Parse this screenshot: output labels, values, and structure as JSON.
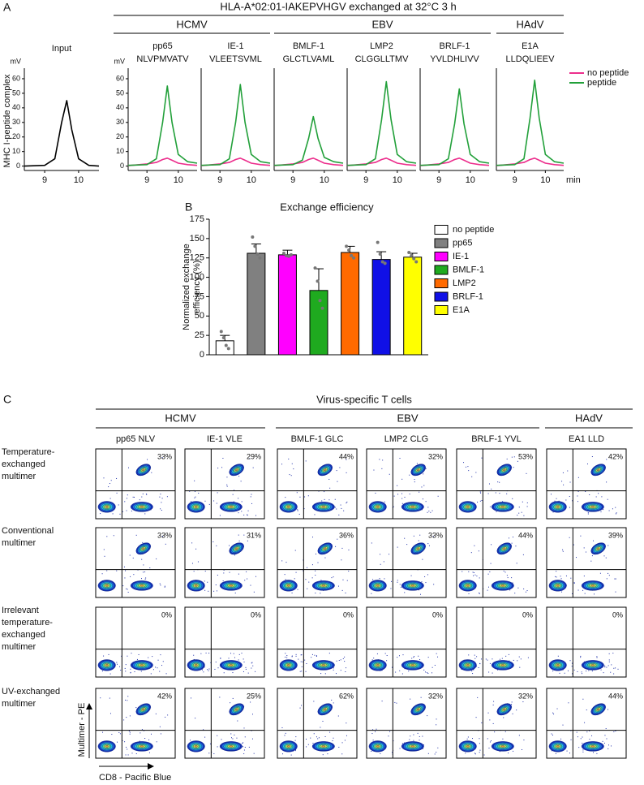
{
  "panel_a": {
    "label": "A",
    "title": "HLA-A*02:01-IAKEPVHGV exchanged at 32°C 3 h",
    "groups": [
      "HCMV",
      "EBV",
      "HAdV"
    ],
    "legend": [
      {
        "name": "no peptide",
        "color": "#ec2e8c"
      },
      {
        "name": "peptide",
        "color": "#22a03a"
      }
    ]
  },
  "panel_b": {
    "label": "B"
  },
  "chart_data": [
    {
      "type": "line",
      "title": "Input",
      "y_label": "MHC I-peptide complex",
      "y_unit": "mV",
      "x": [
        8.4,
        9.0,
        9.3,
        9.5,
        9.65,
        9.8,
        10.0,
        10.3,
        10.6
      ],
      "xlim": [
        8.4,
        10.6
      ],
      "xticks": [
        9,
        10
      ],
      "ylim": [
        -3,
        65
      ],
      "yticks": [
        0,
        10,
        20,
        30,
        40,
        50,
        60
      ],
      "series": [
        {
          "color": "#000000",
          "values": [
            0,
            0.5,
            5,
            30,
            45,
            25,
            5,
            0.5,
            0
          ]
        }
      ]
    },
    {
      "type": "line",
      "title": "pp65",
      "subtitle": "NLVPMVATV",
      "y_unit": "mV",
      "x": [
        8.4,
        9.0,
        9.3,
        9.5,
        9.65,
        9.8,
        10.0,
        10.3,
        10.6
      ],
      "xlim": [
        8.4,
        10.6
      ],
      "xticks": [
        9,
        10
      ],
      "ylim": [
        -3,
        65
      ],
      "yticks": [
        0,
        10,
        20,
        30,
        40,
        50,
        60
      ],
      "series": [
        {
          "color": "#ec2e8c",
          "values": [
            0.3,
            1.5,
            2.5,
            4.5,
            5.5,
            4,
            2,
            1,
            0.5
          ]
        },
        {
          "color": "#22a03a",
          "values": [
            0.5,
            1,
            5,
            30,
            55,
            30,
            8,
            3,
            2
          ]
        }
      ]
    },
    {
      "type": "line",
      "title": "IE-1",
      "subtitle": "VLEETSVML",
      "x": [
        8.4,
        9.0,
        9.3,
        9.5,
        9.65,
        9.8,
        10.0,
        10.3,
        10.6
      ],
      "xlim": [
        8.4,
        10.6
      ],
      "xticks": [
        9,
        10
      ],
      "ylim": [
        -3,
        65
      ],
      "series": [
        {
          "color": "#ec2e8c",
          "values": [
            0.3,
            1.5,
            2.5,
            4.5,
            5.5,
            4,
            2,
            1,
            0.5
          ]
        },
        {
          "color": "#22a03a",
          "values": [
            0.5,
            1,
            5,
            30,
            56,
            30,
            8,
            3,
            2
          ]
        }
      ]
    },
    {
      "type": "line",
      "title": "BMLF-1",
      "subtitle": "GLCTLVAML",
      "x": [
        8.4,
        9.0,
        9.3,
        9.5,
        9.65,
        9.8,
        10.0,
        10.3,
        10.6
      ],
      "xlim": [
        8.4,
        10.6
      ],
      "xticks": [
        9,
        10
      ],
      "ylim": [
        -3,
        65
      ],
      "series": [
        {
          "color": "#ec2e8c",
          "values": [
            0.3,
            1.5,
            2.5,
            4.5,
            5.5,
            4,
            2,
            1,
            0.5
          ]
        },
        {
          "color": "#22a03a",
          "values": [
            0.5,
            1,
            4,
            19,
            34,
            19,
            6,
            3,
            2
          ]
        }
      ]
    },
    {
      "type": "line",
      "title": "LMP2",
      "subtitle": "CLGGLLTMV",
      "x": [
        8.4,
        9.0,
        9.3,
        9.5,
        9.65,
        9.8,
        10.0,
        10.3,
        10.6
      ],
      "xlim": [
        8.4,
        10.6
      ],
      "xticks": [
        9,
        10
      ],
      "ylim": [
        -3,
        65
      ],
      "series": [
        {
          "color": "#ec2e8c",
          "values": [
            0.3,
            1.5,
            2.5,
            4.5,
            5.5,
            4,
            2,
            1,
            0.5
          ]
        },
        {
          "color": "#22a03a",
          "values": [
            0.5,
            1,
            5,
            32,
            58,
            32,
            8,
            3,
            2
          ]
        }
      ]
    },
    {
      "type": "line",
      "title": "BRLF-1",
      "subtitle": "YVLDHLIVV",
      "x": [
        8.4,
        9.0,
        9.3,
        9.5,
        9.65,
        9.8,
        10.0,
        10.3,
        10.6
      ],
      "xlim": [
        8.4,
        10.6
      ],
      "xticks": [
        9,
        10
      ],
      "ylim": [
        -3,
        65
      ],
      "series": [
        {
          "color": "#ec2e8c",
          "values": [
            0.3,
            1.5,
            2.5,
            4.5,
            5.5,
            4,
            2,
            1,
            0.5
          ]
        },
        {
          "color": "#22a03a",
          "values": [
            0.5,
            1,
            5,
            29,
            53,
            29,
            8,
            3,
            2
          ]
        }
      ]
    },
    {
      "type": "line",
      "title": "E1A",
      "subtitle": "LLDQLIEEV",
      "x_unit": "min",
      "x": [
        8.4,
        9.0,
        9.3,
        9.5,
        9.65,
        9.8,
        10.0,
        10.3,
        10.6
      ],
      "xlim": [
        8.4,
        10.6
      ],
      "xticks": [
        9,
        10
      ],
      "ylim": [
        -3,
        65
      ],
      "series": [
        {
          "color": "#ec2e8c",
          "values": [
            0.3,
            1.5,
            2.5,
            4.5,
            5.5,
            4,
            2,
            1,
            0.5
          ]
        },
        {
          "color": "#22a03a",
          "values": [
            0.5,
            1,
            5,
            33,
            59,
            33,
            8,
            3,
            2
          ]
        }
      ]
    },
    {
      "type": "bar",
      "title": "Exchange efficiency",
      "y_label": [
        "Normalized exchange",
        "efficiency (%)"
      ],
      "categories": [
        "no peptide",
        "pp65",
        "IE-1",
        "BMLF-1",
        "LMP2",
        "BRLF-1",
        "E1A"
      ],
      "values": [
        18,
        131,
        129,
        83,
        132,
        123,
        126
      ],
      "errors": [
        7,
        12,
        6,
        28,
        8,
        10,
        5
      ],
      "points": [
        [
          30,
          22,
          12,
          8
        ],
        [
          152,
          140,
          130,
          125
        ],
        [
          131,
          128,
          127,
          129
        ],
        [
          112,
          95,
          70,
          60
        ],
        [
          140,
          135,
          128,
          125
        ],
        [
          145,
          130,
          120,
          118
        ],
        [
          132,
          128,
          124,
          120
        ]
      ],
      "colors": [
        "#ffffff",
        "#808080",
        "#ff00ff",
        "#1faa1f",
        "#ff6a00",
        "#1010e6",
        "#ffff00"
      ],
      "ylim": [
        0,
        175
      ],
      "yticks": [
        0,
        25,
        50,
        75,
        100,
        125,
        150,
        175
      ],
      "legend": "right"
    }
  ],
  "panel_c": {
    "label": "C",
    "title": "Virus-specific T cells",
    "groups": [
      "HCMV",
      "EBV",
      "HAdV"
    ],
    "columns": [
      "pp65 NLV",
      "IE-1 VLE",
      "BMLF-1 GLC",
      "LMP2 CLG",
      "BRLF-1 YVL",
      "EA1 LLD"
    ],
    "rows": [
      {
        "label": [
          "Temperature-",
          "exchanged",
          "multimer"
        ],
        "percents": [
          "33%",
          "29%",
          "44%",
          "32%",
          "53%",
          "42%"
        ]
      },
      {
        "label": [
          "Conventional",
          "multimer"
        ],
        "percents": [
          "33%",
          "31%",
          "36%",
          "33%",
          "44%",
          "39%"
        ]
      },
      {
        "label": [
          "Irrelevant",
          "temperature-",
          "exchanged",
          "multimer"
        ],
        "percents": [
          "0%",
          "0%",
          "0%",
          "0%",
          "0%",
          "0%"
        ]
      },
      {
        "label": [
          "UV-exchanged",
          "multimer"
        ],
        "percents": [
          "42%",
          "25%",
          "62%",
          "32%",
          "32%",
          "44%"
        ]
      }
    ],
    "y_axis": "Multimer - PE",
    "x_axis": "CD8 - Pacific Blue"
  }
}
